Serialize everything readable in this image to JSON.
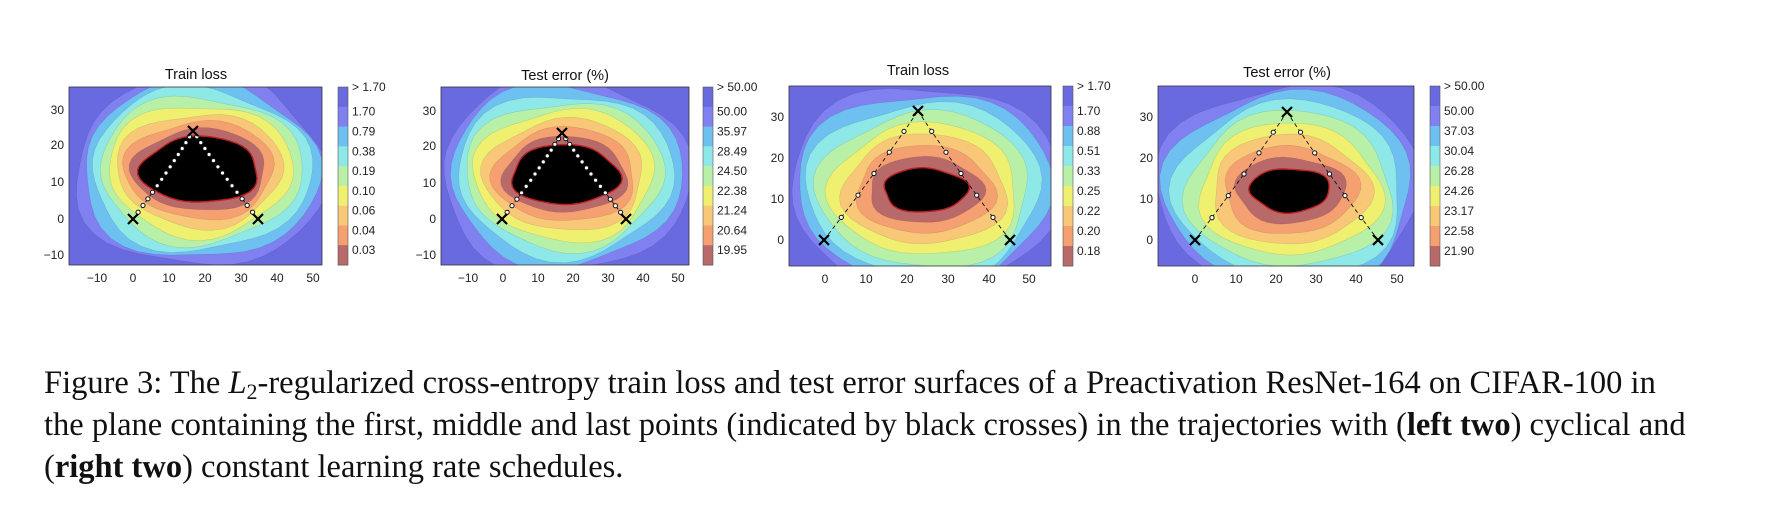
{
  "panels": [
    {
      "title": "Train loss",
      "x_ticks": [
        "−10",
        "0",
        "10",
        "20",
        "30",
        "40",
        "50"
      ],
      "y_ticks": [
        "−10",
        "0",
        "10",
        "20",
        "30"
      ],
      "colorbar_labels": [
        "> 1.70",
        "1.70",
        "0.79",
        "0.38",
        "0.19",
        "0.10",
        "0.06",
        "0.04",
        "0.03"
      ]
    },
    {
      "title": "Test error (%)",
      "x_ticks": [
        "−10",
        "0",
        "10",
        "20",
        "30",
        "40",
        "50"
      ],
      "y_ticks": [
        "−10",
        "0",
        "10",
        "20",
        "30"
      ],
      "colorbar_labels": [
        "> 50.00",
        "50.00",
        "35.97",
        "28.49",
        "24.50",
        "22.38",
        "21.24",
        "20.64",
        "19.95"
      ]
    },
    {
      "title": "Train loss",
      "x_ticks": [
        "0",
        "10",
        "20",
        "30",
        "40",
        "50"
      ],
      "y_ticks": [
        "0",
        "10",
        "20",
        "30"
      ],
      "colorbar_labels": [
        "> 1.70",
        "1.70",
        "0.88",
        "0.51",
        "0.33",
        "0.25",
        "0.22",
        "0.20",
        "0.18"
      ]
    },
    {
      "title": "Test error (%)",
      "x_ticks": [
        "0",
        "10",
        "20",
        "30",
        "40",
        "50"
      ],
      "y_ticks": [
        "0",
        "10",
        "20",
        "30"
      ],
      "colorbar_labels": [
        "> 50.00",
        "50.00",
        "37.03",
        "30.04",
        "26.28",
        "24.26",
        "23.17",
        "22.58",
        "21.90"
      ]
    }
  ],
  "colors": {
    "levels": [
      "#6a6ae0",
      "#8080f0",
      "#6ec0f0",
      "#8ee8e8",
      "#b8f0a8",
      "#f0f070",
      "#f8c878",
      "#f4a070",
      "#b86a6a"
    ],
    "contour_line": "#c02020",
    "trajectory": "#111111"
  },
  "caption": {
    "prefix": "Figure 3: The ",
    "l_symbol": "L",
    "l_subscript": "2",
    "part1": "-regularized cross-entropy train loss and test error surfaces of a Preactivation ResNet-164 on CIFAR-100 in the plane containing the first, middle and last points (indicated by black crosses) in the trajectories with (",
    "bold1": "left two",
    "part2": ") cyclical and (",
    "bold2": "right two",
    "part3": ") constant learning rate schedules."
  }
}
